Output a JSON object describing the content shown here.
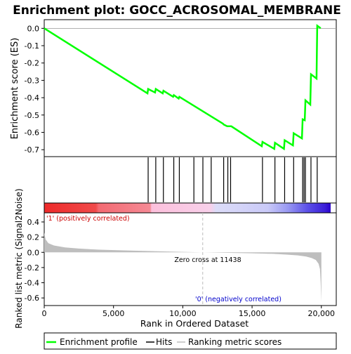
{
  "title": "Enrichment plot: GOCC_ACROSOMAL_MEMBRANE",
  "colors": {
    "es_line": "#00ff00",
    "hits": "#000000",
    "metric_fill": "#bebebe",
    "positive_label": "#cc0000",
    "negative_label": "#0000cc",
    "zero_cross_line": "#bbbbbb"
  },
  "chart_data": [
    {
      "type": "line",
      "name": "enrichment-profile",
      "ylabel": "Enrichment score (ES)",
      "xlim": [
        0,
        20670
      ],
      "ylim": [
        -0.74,
        0.05
      ],
      "yticks": [
        0.0,
        -0.1,
        -0.2,
        -0.3,
        -0.4,
        -0.5,
        -0.6,
        -0.7
      ],
      "ytick_labels": [
        "0.0",
        "-0.1",
        "-0.2",
        "-0.3",
        "-0.4",
        "-0.5",
        "-0.6",
        "-0.7"
      ],
      "x": [
        0,
        7450,
        7500,
        8000,
        8050,
        8550,
        8600,
        9300,
        9350,
        9700,
        9750,
        12900,
        12950,
        13200,
        13250,
        13450,
        13500,
        15700,
        15750,
        16600,
        16650,
        17300,
        17350,
        17950,
        18000,
        18600,
        18650,
        18800,
        18850,
        19200,
        19250,
        19650,
        19700,
        19950
      ],
      "y": [
        0.0,
        -0.375,
        -0.35,
        -0.37,
        -0.35,
        -0.375,
        -0.36,
        -0.395,
        -0.385,
        -0.405,
        -0.395,
        -0.55,
        -0.555,
        -0.565,
        -0.565,
        -0.565,
        -0.565,
        -0.68,
        -0.655,
        -0.695,
        -0.66,
        -0.695,
        -0.645,
        -0.675,
        -0.605,
        -0.635,
        -0.525,
        -0.53,
        -0.415,
        -0.44,
        -0.265,
        -0.29,
        0.015,
        0.0
      ]
    },
    {
      "type": "scatter",
      "name": "hits",
      "x": [
        7500,
        8050,
        8600,
        9350,
        9750,
        10800,
        11450,
        12050,
        12950,
        13250,
        13450,
        15750,
        16650,
        17350,
        18000,
        18650,
        18750,
        18850,
        19250,
        19700
      ]
    },
    {
      "type": "area",
      "name": "ranking-metric",
      "xlabel": "Rank in Ordered Dataset",
      "ylabel": "Ranked list metric (Signal2Noise)",
      "xlim": [
        0,
        20670
      ],
      "ylim": [
        -0.7,
        0.52
      ],
      "xticks": [
        0,
        5000,
        10000,
        15000,
        20000
      ],
      "xtick_labels": [
        "0",
        "5,000",
        "10,000",
        "15,000",
        "20,000"
      ],
      "yticks": [
        0.4,
        0.2,
        0.0,
        -0.2,
        -0.4,
        -0.6
      ],
      "ytick_labels": [
        "0.4",
        "0.2",
        "0.0",
        "-0.2",
        "-0.4",
        "-0.6"
      ],
      "x": [
        0,
        100,
        300,
        700,
        1500,
        2500,
        4000,
        6000,
        8000,
        10000,
        11438,
        13000,
        15000,
        16500,
        17500,
        18300,
        18900,
        19300,
        19600,
        19800,
        19900,
        19950,
        20000
      ],
      "y": [
        0.26,
        0.17,
        0.12,
        0.09,
        0.065,
        0.05,
        0.035,
        0.025,
        0.015,
        0.006,
        0.0,
        -0.006,
        -0.012,
        -0.02,
        -0.03,
        -0.04,
        -0.055,
        -0.075,
        -0.1,
        -0.15,
        -0.22,
        -0.4,
        -0.65
      ]
    }
  ],
  "annotations": {
    "positive": "'1' (positively correlated)",
    "negative": "'0' (negatively correlated)",
    "zero_cross": "Zero cross at 11438",
    "zero_cross_rank": 11438
  },
  "legend": {
    "placement": "bottom",
    "items": [
      {
        "label": "Enrichment profile",
        "color": "#00ff00"
      },
      {
        "label": "Hits",
        "color": "#000000"
      },
      {
        "label": "Ranking metric scores",
        "color": "#bebebe"
      }
    ]
  }
}
